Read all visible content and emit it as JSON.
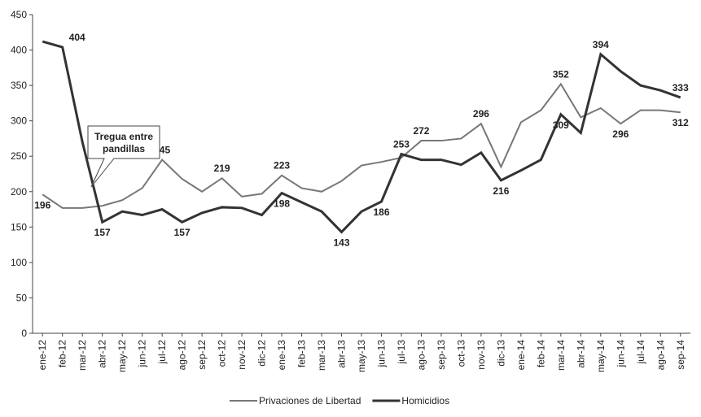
{
  "chart_data": {
    "type": "line",
    "categories": [
      "ene-12",
      "feb-12",
      "mar-12",
      "abr-12",
      "may-12",
      "jun-12",
      "jul-12",
      "ago-12",
      "sep-12",
      "oct-12",
      "nov-12",
      "dic-12",
      "ene-13",
      "feb-13",
      "mar-13",
      "abr-13",
      "may-13",
      "jun-13",
      "jul-13",
      "ago-13",
      "sep-13",
      "oct-13",
      "nov-13",
      "dic-13",
      "ene-14",
      "feb-14",
      "mar-14",
      "abr-14",
      "may-14",
      "jun-14",
      "jul-14",
      "ago-14",
      "sep-14"
    ],
    "series": [
      {
        "name": "Privaciones de Libertad",
        "color": "#777777",
        "values": [
          196,
          177,
          177,
          180,
          188,
          205,
          245,
          218,
          200,
          219,
          193,
          197,
          223,
          205,
          200,
          215,
          237,
          242,
          248,
          272,
          272,
          275,
          296,
          235,
          298,
          315,
          352,
          305,
          318,
          296,
          315,
          315,
          312
        ],
        "value_labels": [
          196,
          null,
          null,
          null,
          null,
          null,
          245,
          null,
          null,
          219,
          null,
          null,
          223,
          null,
          null,
          null,
          null,
          null,
          null,
          272,
          null,
          null,
          296,
          null,
          null,
          null,
          352,
          null,
          null,
          296,
          null,
          null,
          312
        ]
      },
      {
        "name": "Homicidios",
        "color": "#333333",
        "values": [
          412,
          404,
          270,
          157,
          172,
          167,
          175,
          157,
          170,
          178,
          177,
          167,
          198,
          185,
          172,
          143,
          172,
          186,
          253,
          245,
          245,
          238,
          255,
          216,
          230,
          245,
          309,
          283,
          394,
          370,
          350,
          343,
          333
        ],
        "value_labels": [
          null,
          404,
          null,
          157,
          null,
          null,
          null,
          157,
          null,
          null,
          null,
          null,
          198,
          null,
          null,
          143,
          null,
          186,
          253,
          null,
          null,
          null,
          null,
          216,
          null,
          null,
          309,
          null,
          394,
          null,
          null,
          null,
          333
        ]
      }
    ],
    "annotations": [
      "Tregua entre pandillas"
    ],
    "ylim": [
      0,
      450
    ],
    "yticks": [
      0,
      50,
      100,
      150,
      200,
      250,
      300,
      350,
      400,
      450
    ]
  }
}
